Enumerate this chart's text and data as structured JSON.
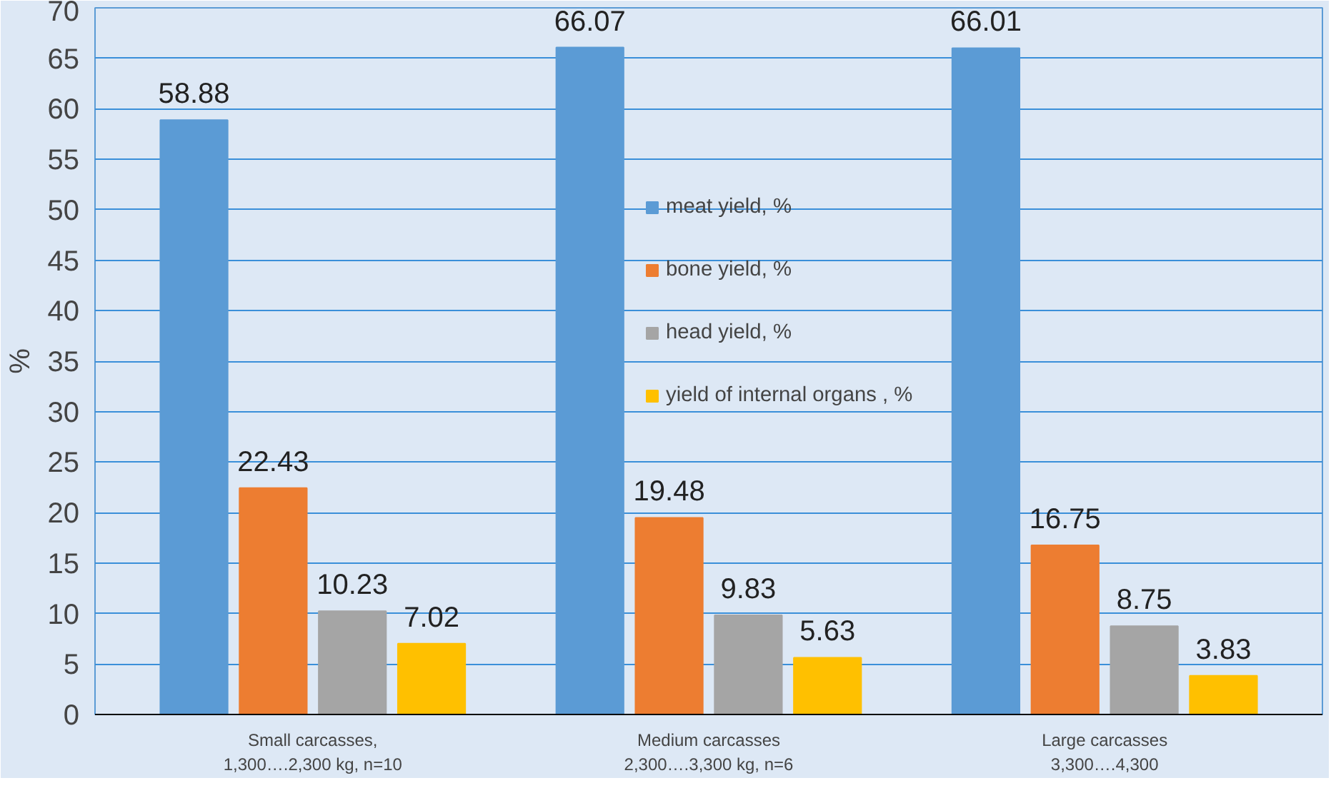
{
  "chart_data": {
    "type": "bar",
    "ylabel": "%",
    "categories": [
      "Small carcasses,\n1,300….2,300 kg, n=10",
      "Medium carcasses\n2,300….3,300 kg, n=6",
      "Large carcasses\n3,300….4,300"
    ],
    "series": [
      {
        "name": "meat yield, %",
        "color": "#5b9bd5",
        "values": [
          58.88,
          66.07,
          66.01
        ]
      },
      {
        "name": "bone yield, %",
        "color": "#ed7d31",
        "values": [
          22.43,
          19.48,
          16.75
        ]
      },
      {
        "name": "head yield, %",
        "color": "#a5a5a5",
        "values": [
          10.23,
          9.83,
          8.75
        ]
      },
      {
        "name": "yield of internal organs , %",
        "color": "#ffc000",
        "values": [
          7.02,
          5.63,
          3.83
        ]
      }
    ],
    "ylim": [
      0,
      70
    ],
    "yticks": [
      0,
      5,
      10,
      15,
      20,
      25,
      30,
      35,
      40,
      45,
      50,
      55,
      60,
      65,
      70
    ],
    "grid": "y",
    "legend": "top",
    "data_labels": true
  }
}
